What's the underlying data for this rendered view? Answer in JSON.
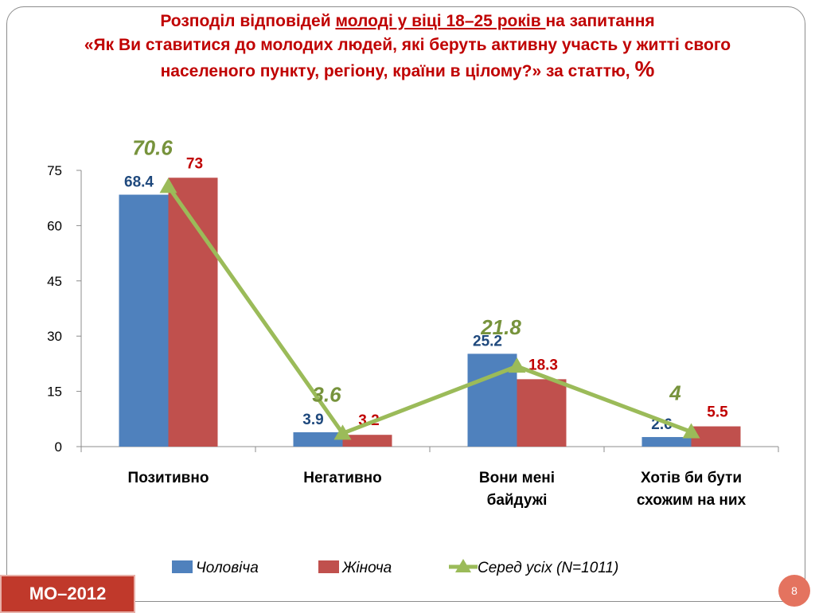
{
  "title": {
    "line1_before": "Розподіл відповідей ",
    "line1_underlined": "молоді у віці 18–25 років ",
    "line1_after": "на запитання",
    "line2": "«Як Ви ставитися до молодих людей, які беруть активну участь у житті свого",
    "line3": "населеного пункту, регіону, країни в цілому?» за статтю,",
    "line3_pct": "%"
  },
  "colors": {
    "male": "#4f81bd",
    "female": "#c0504d",
    "average": "#9bbb59",
    "average_label": "#77933c",
    "male_label": "#1f497d",
    "female_label": "#c00000"
  },
  "chart_data": {
    "type": "bar",
    "categories": [
      [
        "Позитивно"
      ],
      [
        "Негативно"
      ],
      [
        "Вони мені",
        "байдужі"
      ],
      [
        "Хотів би бути",
        "схожим на них"
      ]
    ],
    "series": [
      {
        "name": "Чоловіча",
        "type": "bar",
        "values": [
          68.4,
          3.9,
          25.2,
          2.6
        ]
      },
      {
        "name": "Жіноча",
        "type": "bar",
        "values": [
          73,
          3.2,
          18.3,
          5.5
        ]
      },
      {
        "name": "Серед усіх (N=1011)",
        "type": "line",
        "values": [
          70.6,
          3.6,
          21.8,
          4
        ]
      }
    ],
    "yticks": [
      0,
      15,
      30,
      45,
      60,
      75
    ],
    "ylim": [
      0,
      75
    ],
    "legend_position": "bottom",
    "grid": false
  },
  "footer": {
    "badge": "МО–2012",
    "page_number": "8"
  }
}
